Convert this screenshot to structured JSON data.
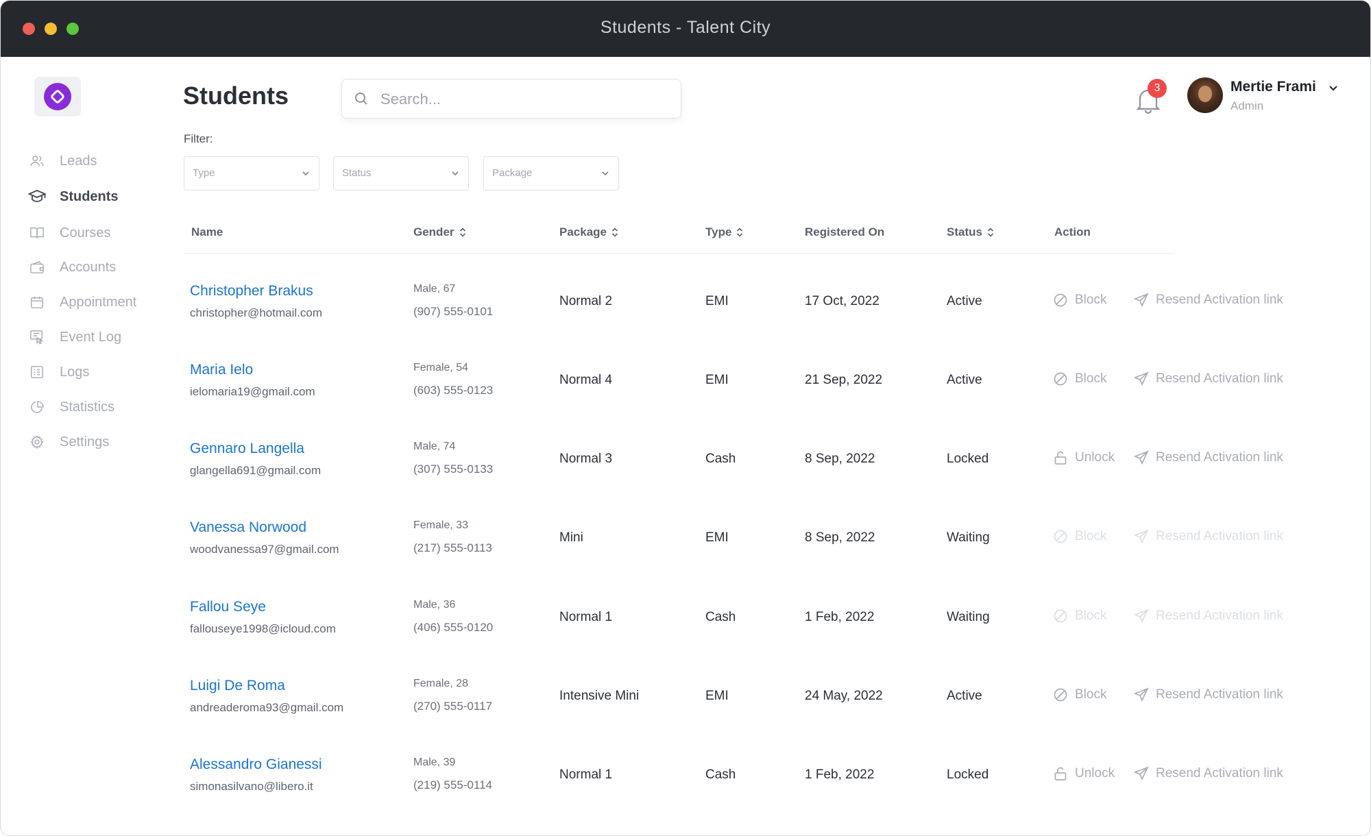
{
  "window": {
    "title": "Students - Talent City"
  },
  "sidebar": {
    "items": [
      {
        "label": "Leads",
        "icon": "users-icon",
        "active": false
      },
      {
        "label": "Students",
        "icon": "graduation-cap-icon",
        "active": true
      },
      {
        "label": "Courses",
        "icon": "book-icon",
        "active": false
      },
      {
        "label": "Accounts",
        "icon": "wallet-icon",
        "active": false
      },
      {
        "label": "Appointment",
        "icon": "calendar-icon",
        "active": false
      },
      {
        "label": "Event Log",
        "icon": "event-log-icon",
        "active": false
      },
      {
        "label": "Logs",
        "icon": "list-icon",
        "active": false
      },
      {
        "label": "Statistics",
        "icon": "pie-chart-icon",
        "active": false
      },
      {
        "label": "Settings",
        "icon": "gear-icon",
        "active": false
      }
    ]
  },
  "header": {
    "title": "Students",
    "search_placeholder": "Search...",
    "notifications_count": "3",
    "user": {
      "name": "Mertie Frami",
      "role": "Admin"
    }
  },
  "filters": {
    "label": "Filter:",
    "type": "Type",
    "status": "Status",
    "package": "Package"
  },
  "table": {
    "columns": {
      "name": "Name",
      "gender": "Gender",
      "package": "Package",
      "type": "Type",
      "registered_on": "Registered On",
      "status": "Status",
      "action": "Action"
    },
    "rows": [
      {
        "name": "Christopher Brakus",
        "email": "christopher@hotmail.com",
        "gender": "Male, 67",
        "phone": "(907) 555-0101",
        "package": "Normal 2",
        "type": "EMI",
        "registered": "17 Oct, 2022",
        "status": "Active",
        "action": "Block",
        "resend": "Resend Activation link"
      },
      {
        "name": "Maria Ielo",
        "email": "ielomaria19@gmail.com",
        "gender": "Female, 54",
        "phone": "(603) 555-0123",
        "package": "Normal 4",
        "type": "EMI",
        "registered": "21 Sep, 2022",
        "status": "Active",
        "action": "Block",
        "resend": "Resend Activation link"
      },
      {
        "name": "Gennaro Langella",
        "email": "glangella691@gmail.com",
        "gender": "Male, 74",
        "phone": "(307) 555-0133",
        "package": "Normal 3",
        "type": "Cash",
        "registered": "8 Sep, 2022",
        "status": "Locked",
        "action": "Unlock",
        "resend": "Resend Activation link"
      },
      {
        "name": "Vanessa Norwood",
        "email": "woodvanessa97@gmail.com",
        "gender": "Female, 33",
        "phone": "(217) 555-0113",
        "package": "Mini",
        "type": "EMI",
        "registered": "8 Sep, 2022",
        "status": "Waiting",
        "action": "Block",
        "resend": "Resend Activation link"
      },
      {
        "name": "Fallou Seye",
        "email": "fallouseye1998@icloud.com",
        "gender": "Male, 36",
        "phone": "(406) 555-0120",
        "package": "Normal 1",
        "type": "Cash",
        "registered": "1 Feb, 2022",
        "status": "Waiting",
        "action": "Block",
        "resend": "Resend Activation link"
      },
      {
        "name": "Luigi De Roma",
        "email": "andreaderoma93@gmail.com",
        "gender": "Female, 28",
        "phone": "(270) 555-0117",
        "package": "Intensive Mini",
        "type": "EMI",
        "registered": "24 May, 2022",
        "status": "Active",
        "action": "Block",
        "resend": "Resend Activation link"
      },
      {
        "name": "Alessandro Gianessi",
        "email": "simonasilvano@libero.it",
        "gender": "Male, 39",
        "phone": "(219) 555-0114",
        "package": "Normal 1",
        "type": "Cash",
        "registered": "1 Feb, 2022",
        "status": "Locked",
        "action": "Unlock",
        "resend": "Resend Activation link"
      }
    ]
  }
}
